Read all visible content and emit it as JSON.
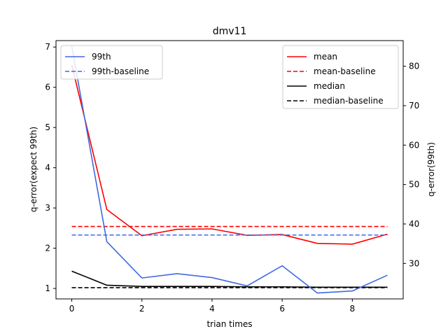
{
  "chart_data": {
    "type": "line",
    "title": "dmv11",
    "xlabel": "trian times",
    "ylabel_left": "q-error(expect 99th)",
    "ylabel_right": "q-error(99th)",
    "x": [
      0,
      1,
      2,
      3,
      4,
      5,
      6,
      7,
      8,
      9
    ],
    "xlim": [
      -0.45,
      9.45
    ],
    "xticks": [
      0,
      2,
      4,
      6,
      8
    ],
    "left_axis": {
      "ylim": [
        0.74,
        7.16
      ],
      "ticks": [
        1,
        2,
        3,
        4,
        5,
        6,
        7
      ]
    },
    "right_axis": {
      "ylim": [
        21.0,
        86.5
      ],
      "ticks": [
        30,
        40,
        50,
        60,
        70,
        80
      ]
    },
    "series": [
      {
        "name": "mean",
        "axis": "left",
        "color": "#ff0000",
        "dash": "solid",
        "values": [
          6.55,
          2.96,
          2.31,
          2.47,
          2.48,
          2.32,
          2.34,
          2.12,
          2.1,
          2.35
        ]
      },
      {
        "name": "mean-baseline",
        "axis": "left",
        "color": "#ff0000",
        "dash": "dashed",
        "values": [
          2.54,
          2.54,
          2.54,
          2.54,
          2.54,
          2.54,
          2.54,
          2.54,
          2.54,
          2.54
        ]
      },
      {
        "name": "median",
        "axis": "left",
        "color": "#000000",
        "dash": "solid",
        "values": [
          1.43,
          1.08,
          1.05,
          1.05,
          1.05,
          1.04,
          1.04,
          1.03,
          1.03,
          1.03
        ]
      },
      {
        "name": "median-baseline",
        "axis": "left",
        "color": "#000000",
        "dash": "dashed",
        "values": [
          1.02,
          1.02,
          1.02,
          1.02,
          1.02,
          1.02,
          1.02,
          1.02,
          1.02,
          1.02
        ]
      },
      {
        "name": "99th",
        "axis": "right",
        "color": "#4169e1",
        "dash": "solid",
        "values": [
          85.0,
          35.5,
          26.3,
          27.4,
          26.4,
          24.3,
          29.4,
          22.5,
          23.0,
          27.0
        ]
      },
      {
        "name": "99th-baseline",
        "axis": "right",
        "color": "#4169e1",
        "dash": "dashed",
        "values": [
          37.2,
          37.2,
          37.2,
          37.2,
          37.2,
          37.2,
          37.2,
          37.2,
          37.2,
          37.2
        ]
      }
    ],
    "legend_left": [
      "99th",
      "99th-baseline"
    ],
    "legend_right": [
      "mean",
      "mean-baseline",
      "median",
      "median-baseline"
    ],
    "legend_left_position": "top-left",
    "legend_right_position": "top-right"
  }
}
